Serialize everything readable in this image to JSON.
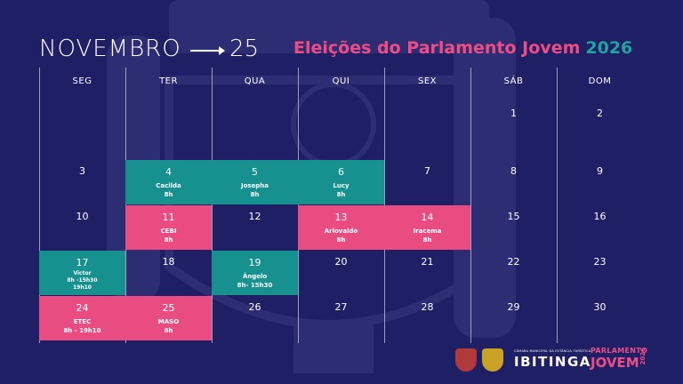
{
  "header": {
    "month": "NOVEMBRO",
    "year_short": "25",
    "title_main": "Eleições do Parlamento Jovem",
    "title_year": "2026"
  },
  "weekdays": [
    "SEG",
    "TER",
    "QUA",
    "QUI",
    "SEX",
    "SÁB",
    "DOM"
  ],
  "weeks": [
    [
      {
        "day": "",
        "color": "none"
      },
      {
        "day": "",
        "color": "none"
      },
      {
        "day": "",
        "color": "none"
      },
      {
        "day": "",
        "color": "none"
      },
      {
        "day": "",
        "color": "none"
      },
      {
        "day": "1",
        "color": "none"
      },
      {
        "day": "2",
        "color": "none"
      }
    ],
    [
      {
        "day": "3",
        "color": "none"
      },
      {
        "day": "4",
        "color": "teal",
        "lines": [
          "Cacilda",
          "8h"
        ]
      },
      {
        "day": "5",
        "color": "teal",
        "lines": [
          "Josepha",
          "8h"
        ]
      },
      {
        "day": "6",
        "color": "teal",
        "lines": [
          "Lucy",
          "8h"
        ]
      },
      {
        "day": "7",
        "color": "none"
      },
      {
        "day": "8",
        "color": "none"
      },
      {
        "day": "9",
        "color": "none"
      }
    ],
    [
      {
        "day": "10",
        "color": "none"
      },
      {
        "day": "11",
        "color": "pink",
        "lines": [
          "CEBI",
          "8h"
        ]
      },
      {
        "day": "12",
        "color": "none"
      },
      {
        "day": "13",
        "color": "pink",
        "lines": [
          "Ariovaldo",
          "8h"
        ]
      },
      {
        "day": "14",
        "color": "pink",
        "lines": [
          "Iracema",
          "8h"
        ]
      },
      {
        "day": "15",
        "color": "none"
      },
      {
        "day": "16",
        "color": "none"
      }
    ],
    [
      {
        "day": "17",
        "color": "teal",
        "small": true,
        "lines": [
          "Victor",
          "8h -15h30",
          "19h10"
        ]
      },
      {
        "day": "18",
        "color": "none"
      },
      {
        "day": "19",
        "color": "teal",
        "lines": [
          "Ângelo",
          "8h- 15h30"
        ]
      },
      {
        "day": "20",
        "color": "none"
      },
      {
        "day": "21",
        "color": "none"
      },
      {
        "day": "22",
        "color": "none"
      },
      {
        "day": "23",
        "color": "none"
      }
    ],
    [
      {
        "day": "24",
        "color": "pink",
        "lines": [
          "ETEC",
          "8h - 19h10"
        ]
      },
      {
        "day": "25",
        "color": "pink",
        "lines": [
          "MASO",
          "8h"
        ]
      },
      {
        "day": "26",
        "color": "none"
      },
      {
        "day": "27",
        "color": "none"
      },
      {
        "day": "28",
        "color": "none"
      },
      {
        "day": "29",
        "color": "none"
      },
      {
        "day": "30",
        "color": "none"
      }
    ]
  ],
  "footer": {
    "chamber": "CÂMARA MUNICIPAL DA ESTÂNCIA TURÍSTICA",
    "city": "IBITINGA",
    "pj_line1": "PARLAMENTO",
    "pj_line2": "JOVEM",
    "pj_year": "2026"
  },
  "colors": {
    "background": "#1f1f66",
    "teal": "#16918f",
    "pink": "#e94c80"
  }
}
